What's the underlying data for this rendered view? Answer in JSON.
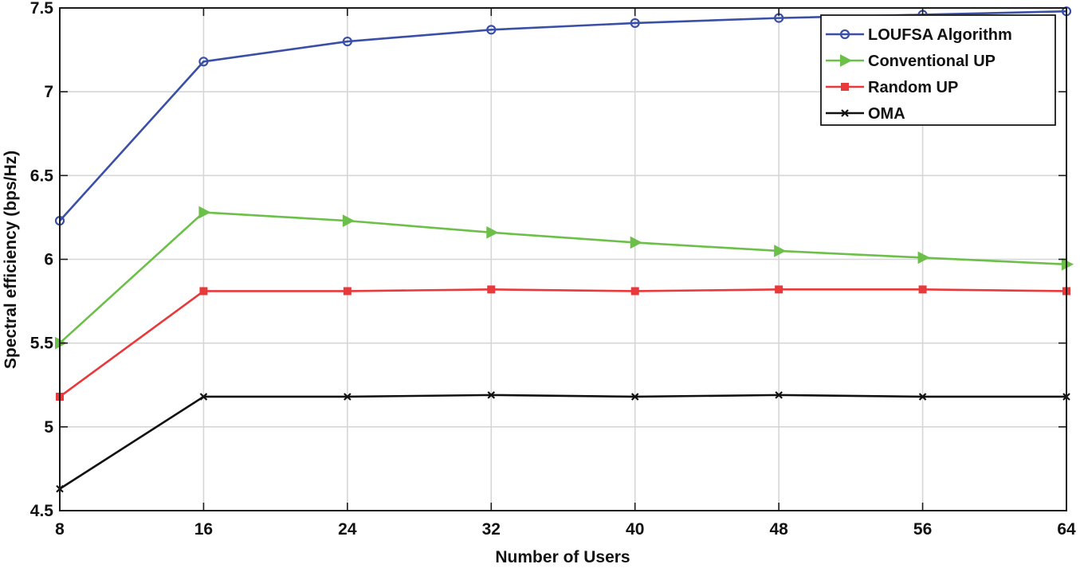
{
  "chart_data": {
    "type": "line",
    "title": "",
    "xlabel": "Number of Users",
    "ylabel": "Spectral efficiency (bps/Hz)",
    "x": [
      8,
      16,
      24,
      32,
      40,
      48,
      56,
      64
    ],
    "x_ticks": [
      8,
      16,
      24,
      32,
      40,
      48,
      56,
      64
    ],
    "xlim": [
      8,
      64
    ],
    "y_ticks": [
      4.5,
      5,
      5.5,
      6,
      6.5,
      7,
      7.5
    ],
    "ylim": [
      4.5,
      7.5
    ],
    "grid": true,
    "legend_position": "top-right",
    "series": [
      {
        "name": "LOUFSA Algorithm",
        "color": "#3a4fa6",
        "marker": "circle",
        "values": [
          6.23,
          7.18,
          7.3,
          7.37,
          7.41,
          7.44,
          7.46,
          7.48
        ]
      },
      {
        "name": "Conventional UP",
        "color": "#6cc04a",
        "marker": "triangle-right",
        "values": [
          5.5,
          6.28,
          6.23,
          6.16,
          6.1,
          6.05,
          6.01,
          5.97
        ]
      },
      {
        "name": "Random UP",
        "color": "#e8393b",
        "marker": "square",
        "values": [
          5.18,
          5.81,
          5.81,
          5.82,
          5.81,
          5.82,
          5.82,
          5.81
        ]
      },
      {
        "name": "OMA",
        "color": "#111111",
        "marker": "x",
        "values": [
          4.63,
          5.18,
          5.18,
          5.19,
          5.18,
          5.19,
          5.18,
          5.18
        ]
      }
    ]
  }
}
